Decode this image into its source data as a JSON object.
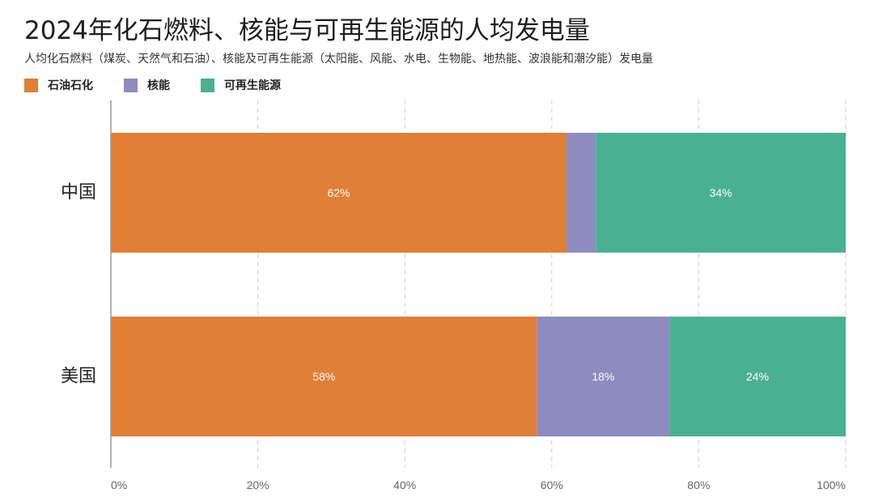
{
  "title": "2024年化石燃料、核能与可再生能源的人均发电量",
  "subtitle": "人均化石燃料（煤炭、天然气和石油）、核能及可再生能源（太阳能、风能、水电、生物能、地热能、波浪能和潮汐能）发电量",
  "legend": [
    {
      "label": "石油石化",
      "color": "#e07f35"
    },
    {
      "label": "核能",
      "color": "#8e8bc0"
    },
    {
      "label": "可再生能源",
      "color": "#4ab092"
    }
  ],
  "chart_data": {
    "type": "bar",
    "orientation": "horizontal",
    "stacked": true,
    "categories": [
      "中国",
      "美国"
    ],
    "series": [
      {
        "name": "石油石化",
        "color": "#e07f35",
        "values": [
          62,
          58
        ],
        "labels": [
          "62%",
          "58%"
        ]
      },
      {
        "name": "核能",
        "color": "#8e8bc0",
        "values": [
          4,
          18
        ],
        "labels": [
          "",
          "18%"
        ]
      },
      {
        "name": "可再生能源",
        "color": "#4ab092",
        "values": [
          34,
          24
        ],
        "labels": [
          "34%",
          "24%"
        ]
      }
    ],
    "xlim": [
      0,
      100
    ],
    "xticks": [
      "0%",
      "20%",
      "40%",
      "60%",
      "80%",
      "100%"
    ],
    "xlabel": "",
    "ylabel": "",
    "grid": "vertical dashed",
    "legend_position": "top-left",
    "label_color": "#ffffff",
    "grid_color": "#cccccc",
    "axis_color": "#999999",
    "tick_label_color": "#666666",
    "category_label_color": "#222222"
  }
}
